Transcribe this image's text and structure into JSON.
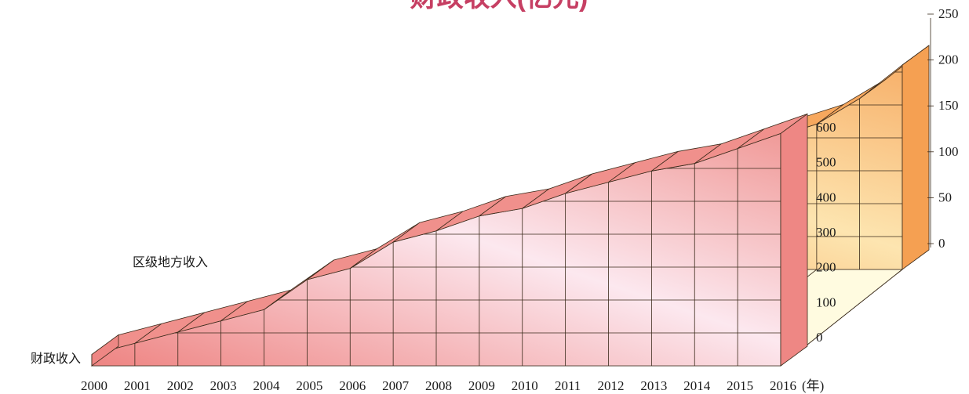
{
  "chart_data": {
    "type": "area",
    "title": "财政收入(亿元)",
    "x": [
      "2000",
      "2001",
      "2002",
      "2003",
      "2004",
      "2005",
      "2006",
      "2007",
      "2008",
      "2009",
      "2010",
      "2011",
      "2012",
      "2013",
      "2014",
      "2015",
      "2016"
    ],
    "x_unit": "(年)",
    "series": [
      {
        "name": "区级地方收入",
        "values": [
          10,
          22,
          31,
          38,
          43,
          62,
          68,
          80,
          93,
          102,
          110,
          120,
          133,
          145,
          160,
          188,
          225
        ],
        "axis": "right",
        "color": "#f4a85a",
        "light_color": "#fff3c8"
      },
      {
        "name": "财政收入",
        "values": [
          30,
          60,
          90,
          120,
          150,
          230,
          260,
          330,
          360,
          400,
          420,
          460,
          490,
          520,
          540,
          580,
          620
        ],
        "axis": "front",
        "color": "#ec8784",
        "light_color": "#fbe3ea"
      }
    ],
    "right_axis": {
      "ticks": [
        "0",
        "50",
        "100",
        "150",
        "200",
        "250"
      ],
      "range": [
        0,
        250
      ]
    },
    "front_axis": {
      "ticks": [
        "0",
        "100",
        "200",
        "300",
        "400",
        "500",
        "600"
      ],
      "range": [
        0,
        600
      ]
    }
  }
}
